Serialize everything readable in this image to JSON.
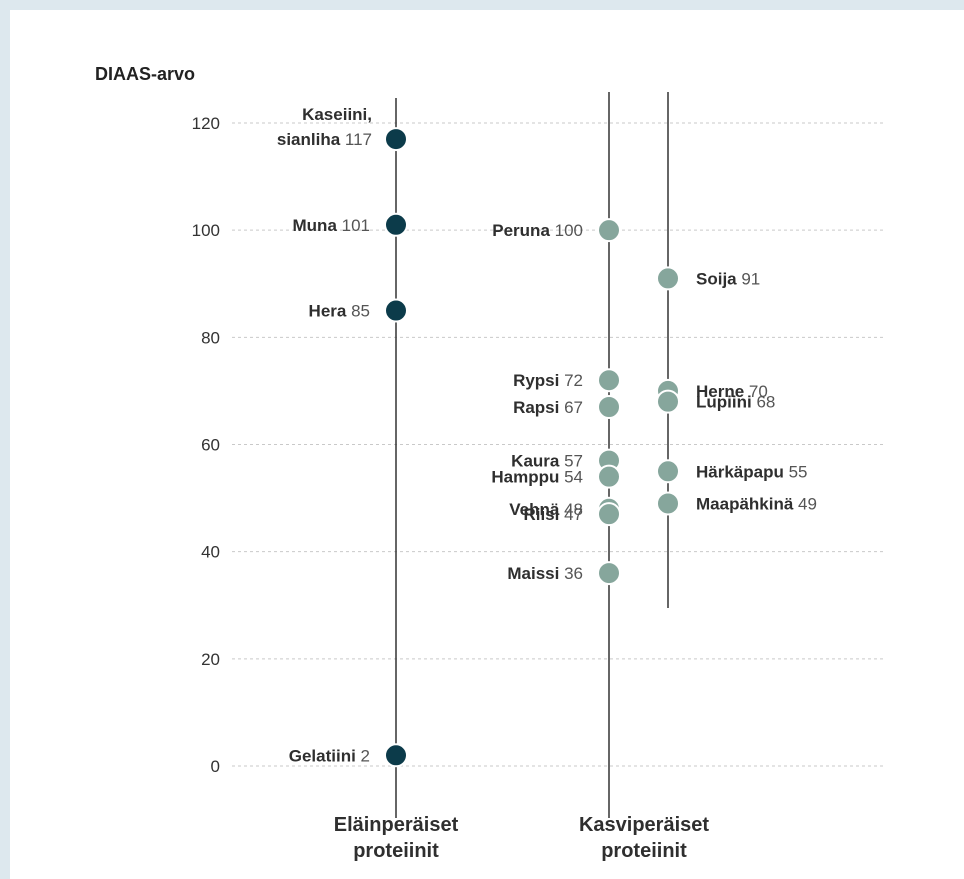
{
  "chart_data": {
    "type": "scatter",
    "ylabel": "DIAAS-arvo",
    "ylim": [
      0,
      120
    ],
    "y_ticks": [
      "0",
      "20",
      "40",
      "60",
      "80",
      "100",
      "120"
    ],
    "grid": true,
    "colors": {
      "animal": "#0c3b4a",
      "plant": "#86a69c"
    },
    "categories": [
      {
        "key": "animal",
        "label_line1": "Eläinperäiset",
        "label_line2": "proteiinit"
      },
      {
        "key": "plant",
        "label_line1": "Kasviperäiset",
        "label_line2": "proteiinit"
      }
    ],
    "series": [
      {
        "group": "animal",
        "points": [
          {
            "name": "Kaseiini,",
            "name2": "sianliha",
            "value": 117
          },
          {
            "name": "Muna",
            "value": 101
          },
          {
            "name": "Hera",
            "value": 85
          },
          {
            "name": "Gelatiini",
            "value": 2
          }
        ]
      },
      {
        "group": "plant",
        "points": [
          {
            "name": "Peruna",
            "value": 100
          },
          {
            "name": "Rypsi",
            "value": 72
          },
          {
            "name": "Rapsi",
            "value": 67
          },
          {
            "name": "Kaura",
            "value": 57
          },
          {
            "name": "Hamppu",
            "value": 54
          },
          {
            "name": "Vehnä",
            "value": 48
          },
          {
            "name": "Riisi",
            "value": 47
          },
          {
            "name": "Maissi",
            "value": 36
          }
        ]
      },
      {
        "group": "plant",
        "points": [
          {
            "name": "Soija",
            "value": 91
          },
          {
            "name": "Herne",
            "value": 70
          },
          {
            "name": "Lupiini",
            "value": 68
          },
          {
            "name": "Härkäpapu",
            "value": 55
          },
          {
            "name": "Maapähkinä",
            "value": 49
          }
        ]
      }
    ]
  }
}
